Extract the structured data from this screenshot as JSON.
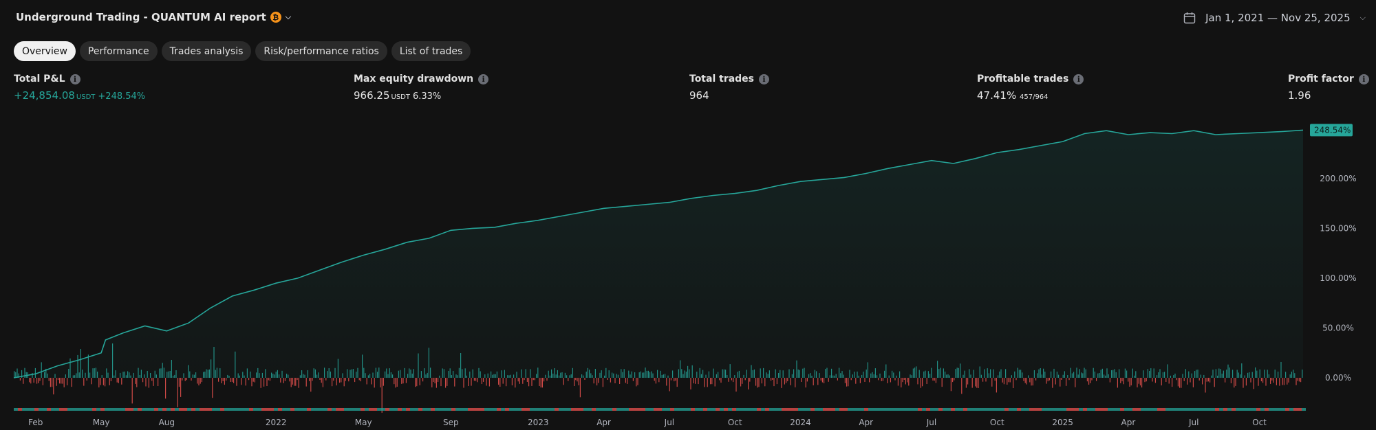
{
  "header": {
    "title": "Underground Trading - QUANTUM AI report",
    "currency_glyph": "₿",
    "date_range": "Jan 1, 2021 — Nov 25, 2025"
  },
  "tabs": [
    {
      "label": "Overview",
      "active": true
    },
    {
      "label": "Performance",
      "active": false
    },
    {
      "label": "Trades analysis",
      "active": false
    },
    {
      "label": "Risk/performance ratios",
      "active": false
    },
    {
      "label": "List of trades",
      "active": false
    }
  ],
  "metrics": {
    "total_pnl": {
      "label": "Total P&L",
      "value": "+24,854.08",
      "unit": "USDT",
      "percent": "+248.54%"
    },
    "max_drawdown": {
      "label": "Max equity drawdown",
      "value": "966.25",
      "unit": "USDT",
      "percent": "6.33%"
    },
    "total_trades": {
      "label": "Total trades",
      "value": "964"
    },
    "profitable_trades": {
      "label": "Profitable trades",
      "value": "47.41%",
      "ratio": "457/964"
    },
    "profit_factor": {
      "label": "Profit factor",
      "value": "1.96"
    }
  },
  "colors": {
    "background": "#121212",
    "equity_line": "#26a69a",
    "profit_bar": "#26a69a",
    "loss_bar": "#ef5350",
    "text": "#d1d4dc"
  },
  "chart_data": {
    "type": "area",
    "series_name": "",
    "y_unit": "%",
    "ylim": [
      -10,
      255
    ],
    "y_ticks": [
      "0.00%",
      "50.00%",
      "100.00%",
      "150.00%",
      "200.00%"
    ],
    "y_tick_values": [
      0,
      50,
      100,
      150,
      200
    ],
    "last_value_label": "248.54%",
    "last_value": 248.54,
    "x_tick_labels": [
      "Feb",
      "May",
      "Aug",
      "2022",
      "May",
      "Sep",
      "2023",
      "Apr",
      "Jul",
      "Oct",
      "2024",
      "Apr",
      "Jul",
      "Oct",
      "2025",
      "Apr",
      "Jul",
      "Oct"
    ],
    "x_tick_positions": [
      1,
      4,
      7,
      12,
      16,
      20,
      24,
      27,
      30,
      33,
      36,
      39,
      42,
      45,
      48,
      51,
      54,
      57
    ],
    "x_range_months": [
      0,
      59
    ],
    "equity": [
      {
        "m": 0,
        "v": 0
      },
      {
        "m": 1,
        "v": 4
      },
      {
        "m": 2,
        "v": 12
      },
      {
        "m": 3,
        "v": 18
      },
      {
        "m": 4,
        "v": 25
      },
      {
        "m": 4.2,
        "v": 38
      },
      {
        "m": 5,
        "v": 45
      },
      {
        "m": 6,
        "v": 52
      },
      {
        "m": 7,
        "v": 47
      },
      {
        "m": 8,
        "v": 55
      },
      {
        "m": 9,
        "v": 70
      },
      {
        "m": 10,
        "v": 82
      },
      {
        "m": 11,
        "v": 88
      },
      {
        "m": 12,
        "v": 95
      },
      {
        "m": 13,
        "v": 100
      },
      {
        "m": 14,
        "v": 108
      },
      {
        "m": 15,
        "v": 116
      },
      {
        "m": 16,
        "v": 123
      },
      {
        "m": 17,
        "v": 129
      },
      {
        "m": 18,
        "v": 136
      },
      {
        "m": 19,
        "v": 140
      },
      {
        "m": 20,
        "v": 148
      },
      {
        "m": 21,
        "v": 150
      },
      {
        "m": 22,
        "v": 151
      },
      {
        "m": 23,
        "v": 155
      },
      {
        "m": 24,
        "v": 158
      },
      {
        "m": 25,
        "v": 162
      },
      {
        "m": 26,
        "v": 166
      },
      {
        "m": 27,
        "v": 170
      },
      {
        "m": 28,
        "v": 172
      },
      {
        "m": 29,
        "v": 174
      },
      {
        "m": 30,
        "v": 176
      },
      {
        "m": 31,
        "v": 180
      },
      {
        "m": 32,
        "v": 183
      },
      {
        "m": 33,
        "v": 185
      },
      {
        "m": 34,
        "v": 188
      },
      {
        "m": 35,
        "v": 193
      },
      {
        "m": 36,
        "v": 197
      },
      {
        "m": 37,
        "v": 199
      },
      {
        "m": 38,
        "v": 201
      },
      {
        "m": 39,
        "v": 205
      },
      {
        "m": 40,
        "v": 210
      },
      {
        "m": 41,
        "v": 214
      },
      {
        "m": 42,
        "v": 218
      },
      {
        "m": 43,
        "v": 215
      },
      {
        "m": 44,
        "v": 220
      },
      {
        "m": 45,
        "v": 226
      },
      {
        "m": 46,
        "v": 229
      },
      {
        "m": 47,
        "v": 233
      },
      {
        "m": 48,
        "v": 237
      },
      {
        "m": 49,
        "v": 245
      },
      {
        "m": 50,
        "v": 248
      },
      {
        "m": 51,
        "v": 244
      },
      {
        "m": 52,
        "v": 246
      },
      {
        "m": 53,
        "v": 245
      },
      {
        "m": 54,
        "v": 248
      },
      {
        "m": 55,
        "v": 244
      },
      {
        "m": 56,
        "v": 245
      },
      {
        "m": 57,
        "v": 246
      },
      {
        "m": 58,
        "v": 247
      },
      {
        "m": 59,
        "v": 248.54
      }
    ]
  }
}
